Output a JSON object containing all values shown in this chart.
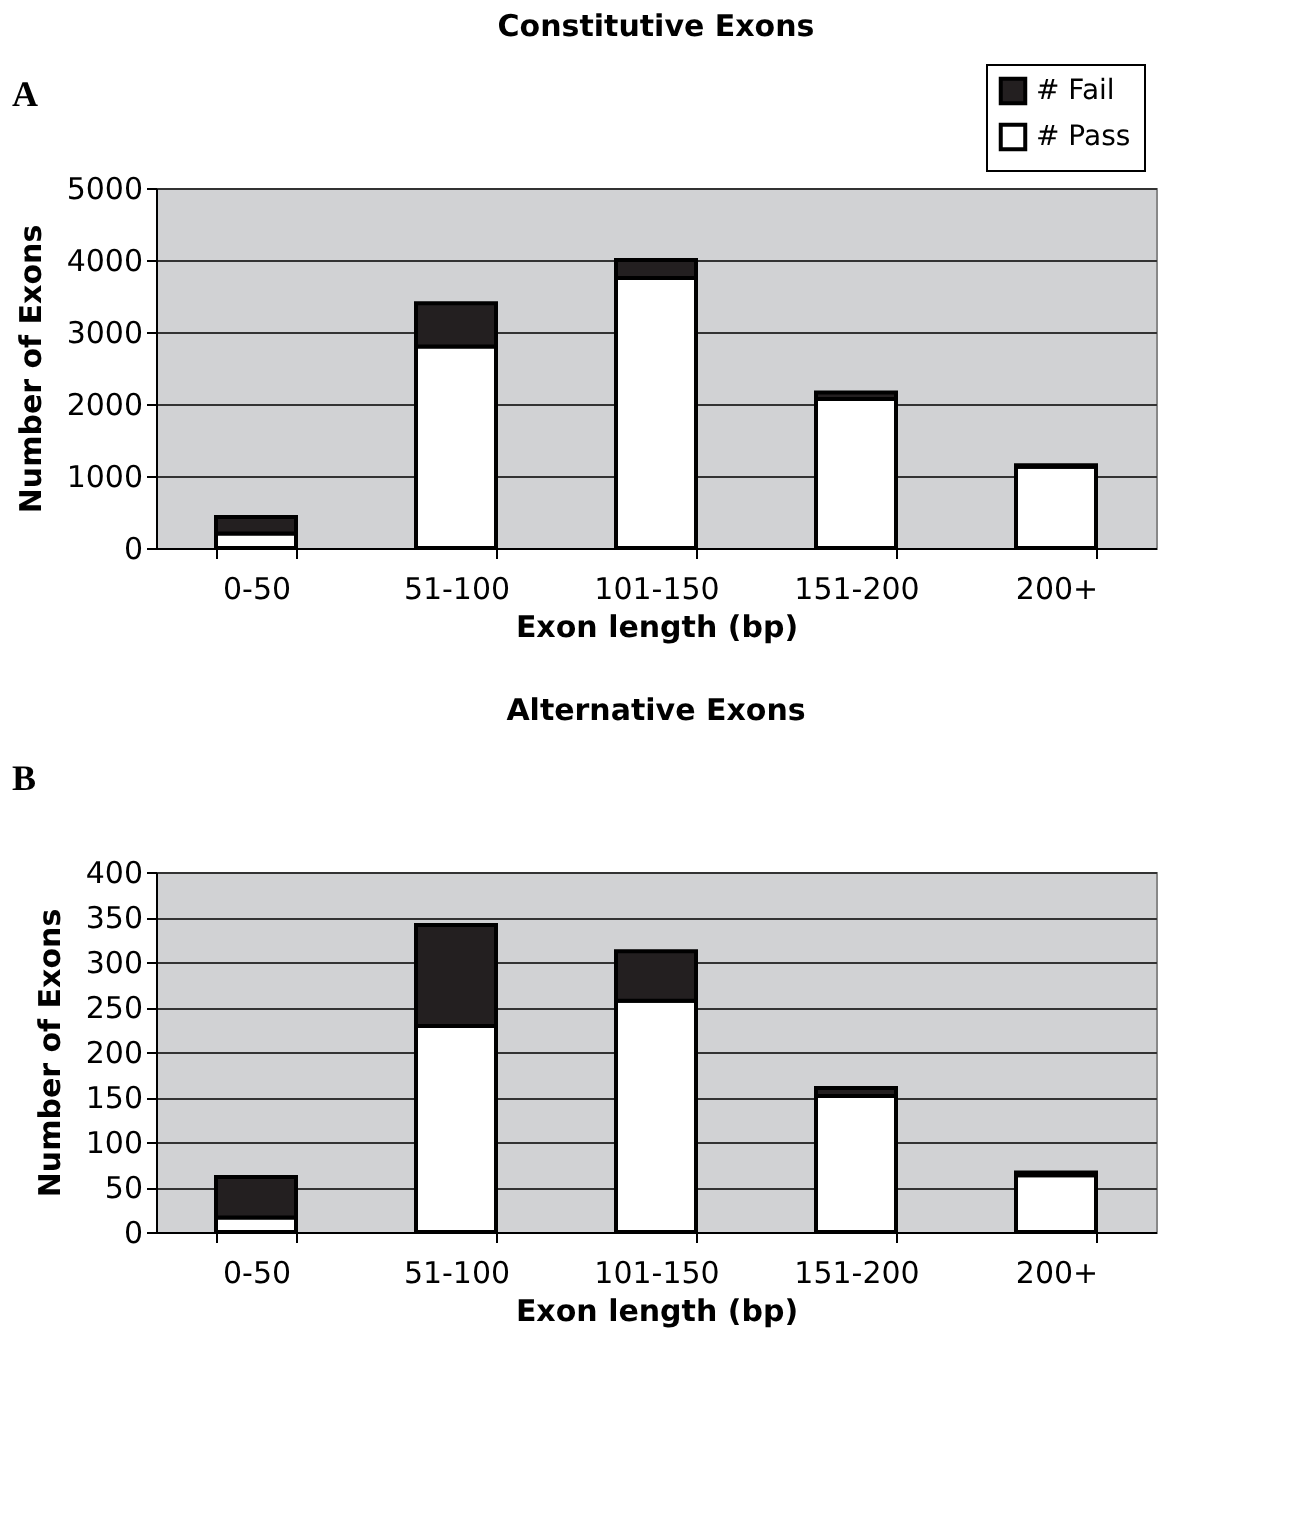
{
  "chart_data": [
    {
      "type": "bar",
      "title": "Constitutive Exons",
      "xlabel": "Exon length (bp)",
      "ylabel": "Number of Exons",
      "annotations": [
        "A"
      ],
      "categories": [
        "0-50",
        "51-100",
        "101-150",
        "151-200",
        "200+"
      ],
      "stacked": true,
      "series": [
        {
          "name": "# Pass",
          "color": "#ffffff",
          "values": [
            200,
            2800,
            3750,
            2070,
            1130
          ]
        },
        {
          "name": "# Fail",
          "color": "#231f20",
          "values": [
            230,
            600,
            250,
            90,
            20
          ]
        }
      ],
      "ylim": [
        0,
        5000
      ],
      "yticks": [
        0,
        1000,
        2000,
        3000,
        4000,
        5000
      ],
      "grid": "y",
      "legend": "top right"
    },
    {
      "type": "bar",
      "title": "Alternative Exons",
      "xlabel": "Exon length (bp)",
      "ylabel": "Number of Exons",
      "annotations": [
        "B"
      ],
      "categories": [
        "0-50",
        "51-100",
        "101-150",
        "151-200",
        "200+"
      ],
      "stacked": true,
      "series": [
        {
          "name": "# Pass",
          "color": "#ffffff",
          "values": [
            16,
            229,
            257,
            151,
            63
          ]
        },
        {
          "name": "# Fail",
          "color": "#231f20",
          "values": [
            45,
            112,
            55,
            9,
            3
          ]
        }
      ],
      "ylim": [
        0,
        400
      ],
      "yticks": [
        0,
        50,
        100,
        150,
        200,
        250,
        300,
        350,
        400
      ],
      "grid": "y",
      "legend": "top right"
    }
  ]
}
